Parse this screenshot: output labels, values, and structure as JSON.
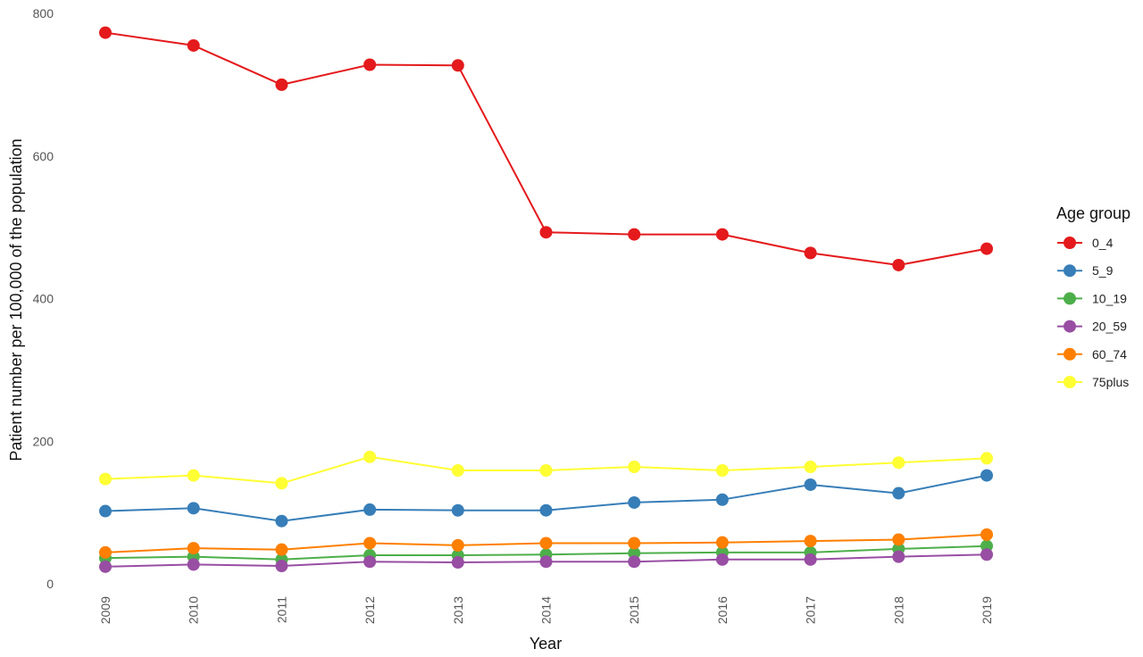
{
  "chart_data": {
    "type": "line",
    "xlabel": "Year",
    "ylabel": "Patient number per 100,000 of the population",
    "ylim": [
      0,
      800
    ],
    "y_ticks": [
      "0",
      "200",
      "400",
      "600",
      "800"
    ],
    "grid": false,
    "legend": {
      "title": "Age group",
      "placement": "right"
    },
    "x": [
      "2009",
      "2010",
      "2011",
      "2012",
      "2013",
      "2014",
      "2015",
      "2016",
      "2017",
      "2018",
      "2019"
    ],
    "series": [
      {
        "name": "0_4",
        "color": "#e41a1c",
        "values": [
          773,
          755,
          700,
          728,
          727,
          493,
          490,
          490,
          464,
          447,
          470
        ]
      },
      {
        "name": "5_9",
        "color": "#377eb8",
        "values": [
          102,
          106,
          88,
          104,
          103,
          103,
          114,
          118,
          139,
          127,
          152
        ]
      },
      {
        "name": "10_19",
        "color": "#4daf4a",
        "values": [
          36,
          38,
          34,
          40,
          40,
          41,
          43,
          44,
          44,
          49,
          53
        ]
      },
      {
        "name": "20_59",
        "color": "#984ea3",
        "values": [
          24,
          27,
          25,
          31,
          30,
          31,
          31,
          34,
          34,
          38,
          41
        ]
      },
      {
        "name": "60_74",
        "color": "#ff7f00",
        "values": [
          44,
          50,
          48,
          57,
          54,
          57,
          57,
          58,
          60,
          62,
          69
        ]
      },
      {
        "name": "75plus",
        "color": "#ffff33",
        "values": [
          147,
          152,
          141,
          178,
          159,
          159,
          164,
          159,
          164,
          170,
          176
        ]
      }
    ]
  }
}
